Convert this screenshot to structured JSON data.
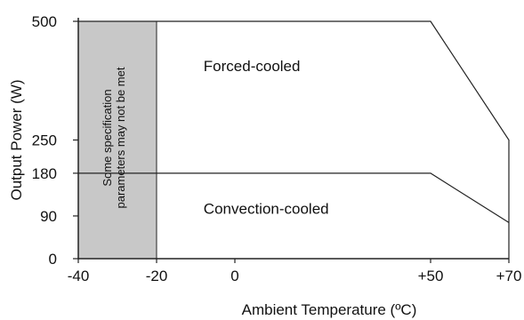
{
  "chart_data": {
    "type": "line",
    "xlabel": "Ambient Temperature (ºC)",
    "ylabel": "Output Power (W)",
    "xlim": [
      -40,
      70
    ],
    "ylim": [
      0,
      500
    ],
    "x_ticks": [
      {
        "value": -40,
        "label": "-40"
      },
      {
        "value": -20,
        "label": "-20"
      },
      {
        "value": 0,
        "label": "0"
      },
      {
        "value": 50,
        "label": "+50"
      },
      {
        "value": 70,
        "label": "+70"
      }
    ],
    "y_ticks": [
      {
        "value": 0,
        "label": "0"
      },
      {
        "value": 90,
        "label": "90"
      },
      {
        "value": 180,
        "label": "180"
      },
      {
        "value": 250,
        "label": "250"
      },
      {
        "value": 500,
        "label": "500"
      }
    ],
    "series": [
      {
        "key": "forced",
        "x": [
          -40,
          50,
          70,
          70
        ],
        "y": [
          500,
          500,
          250,
          0
        ]
      },
      {
        "key": "convection",
        "x": [
          -40,
          50,
          70
        ],
        "y": [
          180,
          180,
          76
        ]
      }
    ],
    "shaded_region": {
      "x_from": -40,
      "x_to": -20,
      "color": "#c8c8c8",
      "label_lines": [
        "Some specification",
        "parameters may not be met"
      ]
    },
    "region_labels": [
      {
        "text": "Forced-cooled",
        "x": -8,
        "y": 395
      },
      {
        "text": "Convection-cooled",
        "x": -8,
        "y": 95
      }
    ],
    "grid": false,
    "legend": "none",
    "line_color": "#222222"
  }
}
